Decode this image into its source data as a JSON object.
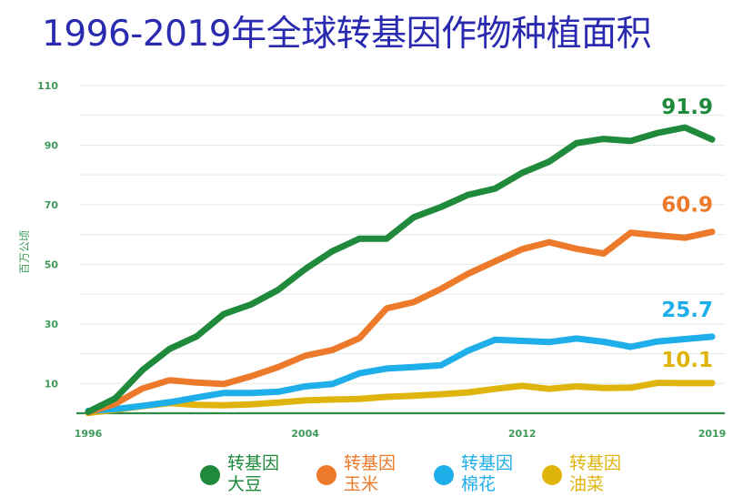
{
  "title": "1996-2019年全球转基因作物种植面积",
  "chart_data": {
    "type": "line",
    "title": "1996-2019年全球转基因作物种植面积",
    "ylabel": "百万公顷",
    "xlabel": "",
    "ylim": [
      0,
      110
    ],
    "yticks": [
      10,
      30,
      50,
      70,
      90,
      110
    ],
    "xticks": [
      1996,
      2004,
      2012,
      2019
    ],
    "grid": true,
    "legend_position": "bottom",
    "x": [
      1996,
      1997,
      1998,
      1999,
      2000,
      2001,
      2002,
      2003,
      2004,
      2005,
      2006,
      2007,
      2008,
      2009,
      2010,
      2011,
      2012,
      2013,
      2014,
      2015,
      2016,
      2017,
      2018,
      2019
    ],
    "series": [
      {
        "name_line1": "转基因",
        "name_line2": "大豆",
        "color": "#1f8a3c",
        "end_label": "91.9",
        "values": [
          0.5,
          5,
          14.5,
          21.6,
          25.8,
          33.3,
          36.5,
          41.4,
          48.4,
          54.4,
          58.6,
          58.6,
          65.8,
          69.2,
          73.3,
          75.4,
          80.7,
          84.5,
          90.7,
          92.1,
          91.4,
          94.1,
          95.9,
          91.9
        ]
      },
      {
        "name_line1": "转基因",
        "name_line2": "玉米",
        "color": "#ec7a2a",
        "end_label": "60.9",
        "values": [
          0.3,
          3.2,
          8.3,
          11.1,
          10.3,
          9.8,
          12.4,
          15.5,
          19.3,
          21.2,
          25.2,
          35.2,
          37.3,
          41.7,
          46.8,
          51,
          55.1,
          57.4,
          55.2,
          53.6,
          60.6,
          59.7,
          58.9,
          60.9
        ]
      },
      {
        "name_line1": "转基因",
        "name_line2": "棉花",
        "color": "#1eaee9",
        "end_label": "25.7",
        "values": [
          0.8,
          1.4,
          2.5,
          3.7,
          5.3,
          6.8,
          6.8,
          7.2,
          9,
          9.8,
          13.4,
          15,
          15.5,
          16.1,
          21,
          24.7,
          24.3,
          23.9,
          25.1,
          24,
          22.3,
          24.1,
          24.9,
          25.7
        ]
      },
      {
        "name_line1": "转基因",
        "name_line2": "油菜",
        "color": "#dfb40d",
        "end_label": "10.1",
        "values": [
          0.1,
          1.2,
          2.4,
          3.4,
          2.8,
          2.7,
          3,
          3.6,
          4.3,
          4.6,
          4.8,
          5.5,
          5.9,
          6.4,
          7,
          8.2,
          9.2,
          8.2,
          9,
          8.5,
          8.6,
          10.2,
          10.1,
          10.1
        ]
      }
    ]
  }
}
